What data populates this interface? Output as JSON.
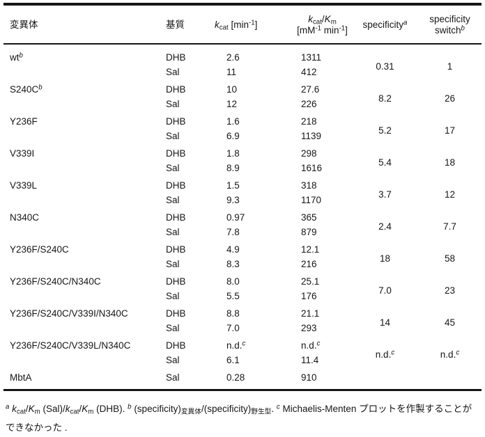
{
  "page": {
    "background": "#ffffff",
    "text_color": "#161616"
  },
  "table": {
    "headers": {
      "mutant": "変異体",
      "substrate": "基質",
      "kcat": "*k*~cat~ [min^-1^]",
      "kcatkm_line1": "*k*~cat~/*K*~m~",
      "kcatkm_line2": "[mM^-1^ min^-1^]",
      "specificity": "specificity^*a*^",
      "switch_line1": "specificity",
      "switch_line2": "switch^*b*^"
    },
    "rows": [
      {
        "mutant": "wt^*b*^",
        "entries": [
          {
            "substrate": "DHB",
            "kcat": "2.6",
            "kcat_km": "1311"
          },
          {
            "substrate": "Sal",
            "kcat": "11",
            "kcat_km": "412"
          }
        ],
        "specificity": "0.31",
        "switch": "1"
      },
      {
        "mutant": "S240C^*b*^",
        "entries": [
          {
            "substrate": "DHB",
            "kcat": "10",
            "kcat_km": "27.6"
          },
          {
            "substrate": "Sal",
            "kcat": "12",
            "kcat_km": "226"
          }
        ],
        "specificity": "8.2",
        "switch": "26"
      },
      {
        "mutant": "Y236F",
        "entries": [
          {
            "substrate": "DHB",
            "kcat": "1.6",
            "kcat_km": "218"
          },
          {
            "substrate": "Sal",
            "kcat": "6.9",
            "kcat_km": "1139"
          }
        ],
        "specificity": "5.2",
        "switch": "17"
      },
      {
        "mutant": "V339I",
        "entries": [
          {
            "substrate": "DHB",
            "kcat": "1.8",
            "kcat_km": "298"
          },
          {
            "substrate": "Sal",
            "kcat": "8.9",
            "kcat_km": "1616"
          }
        ],
        "specificity": "5.4",
        "switch": "18"
      },
      {
        "mutant": "V339L",
        "entries": [
          {
            "substrate": "DHB",
            "kcat": "1.5",
            "kcat_km": "318"
          },
          {
            "substrate": "Sal",
            "kcat": "9.3",
            "kcat_km": "1170"
          }
        ],
        "specificity": "3.7",
        "switch": "12"
      },
      {
        "mutant": "N340C",
        "entries": [
          {
            "substrate": "DHB",
            "kcat": "0.97",
            "kcat_km": "365"
          },
          {
            "substrate": "Sal",
            "kcat": "7.8",
            "kcat_km": "879"
          }
        ],
        "specificity": "2.4",
        "switch": "7.7"
      },
      {
        "mutant": "Y236F/S240C",
        "entries": [
          {
            "substrate": "DHB",
            "kcat": "4.9",
            "kcat_km": "12.1"
          },
          {
            "substrate": "Sal",
            "kcat": "8.3",
            "kcat_km": "216"
          }
        ],
        "specificity": "18",
        "switch": "58"
      },
      {
        "mutant": "Y236F/S240C/N340C",
        "entries": [
          {
            "substrate": "DHB",
            "kcat": "8.0",
            "kcat_km": "25.1"
          },
          {
            "substrate": "Sal",
            "kcat": "5.5",
            "kcat_km": "176"
          }
        ],
        "specificity": "7.0",
        "switch": "23"
      },
      {
        "mutant": "Y236F/S240C/V339I/N340C",
        "entries": [
          {
            "substrate": "DHB",
            "kcat": "8.8",
            "kcat_km": "21.1"
          },
          {
            "substrate": "Sal",
            "kcat": "7.0",
            "kcat_km": "293"
          }
        ],
        "specificity": "14",
        "switch": "45"
      },
      {
        "mutant": "Y236F/S240C/V339L/N340C",
        "entries": [
          {
            "substrate": "DHB",
            "kcat": "n.d.^*c*^",
            "kcat_km": "n.d.^*c*^"
          },
          {
            "substrate": "Sal",
            "kcat": "6.1",
            "kcat_km": "11.4"
          }
        ],
        "specificity": "n.d.^*c*^",
        "switch": "n.d.^*c*^"
      },
      {
        "mutant": "MbtA",
        "entries": [
          {
            "substrate": "Sal",
            "kcat": "0.28",
            "kcat_km": "910"
          }
        ],
        "specificity": "",
        "switch": ""
      }
    ]
  },
  "footnote": "^*a*^ *k*~cat~/*K*~m~ (Sal)/*k*~cat~/*K*~m~ (DHB). ^*b*^ (specificity)~変異体~/(specificity)~野生型~. ^*c*^ Michaelis-Menten プロットを作製することができなかった ."
}
